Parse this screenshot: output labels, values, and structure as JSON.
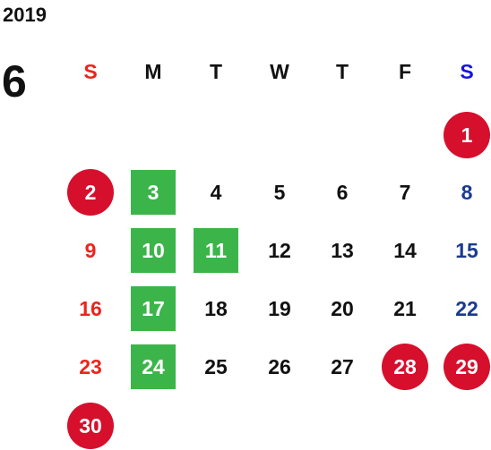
{
  "year": "2019",
  "month": "6",
  "weekdays": [
    "S",
    "M",
    "T",
    "W",
    "T",
    "F",
    "S"
  ],
  "colors": {
    "sunday": "#e8261e",
    "saturday": "#1a3a8f",
    "saturday_header": "#1515e0",
    "weekday": "#111111",
    "holiday_circle": "#d60f2d",
    "highlight_square": "#3bb54a"
  },
  "weeks": [
    [
      "",
      "",
      "",
      "",
      "",
      "",
      "1"
    ],
    [
      "2",
      "3",
      "4",
      "5",
      "6",
      "7",
      "8"
    ],
    [
      "9",
      "10",
      "11",
      "12",
      "13",
      "14",
      "15"
    ],
    [
      "16",
      "17",
      "18",
      "19",
      "20",
      "21",
      "22"
    ],
    [
      "23",
      "24",
      "25",
      "26",
      "27",
      "28",
      "29"
    ],
    [
      "30",
      "",
      "",
      "",
      "",
      "",
      ""
    ]
  ],
  "circled_days": [
    "1",
    "2",
    "28",
    "29",
    "30"
  ],
  "square_highlighted_days": [
    "3",
    "10",
    "11",
    "17",
    "24"
  ]
}
